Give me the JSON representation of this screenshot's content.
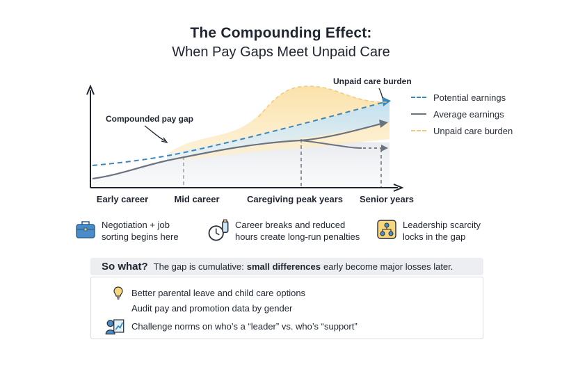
{
  "header": {
    "title": "The Compounding Effect:",
    "subtitle": "When Pay Gaps Meet Unpaid Care"
  },
  "chart_data": {
    "type": "line",
    "x_categories": [
      "Early career",
      "Mid career",
      "Caregiving peak years",
      "Senior years"
    ],
    "series": [
      {
        "name": "Potential earnings",
        "style": "dashed",
        "color": "#3a86b8"
      },
      {
        "name": "Average earnings",
        "style": "solid",
        "color": "#6b7280"
      },
      {
        "name": "Unpaid care burden",
        "style": "dashed",
        "color": "#f1c97a"
      }
    ],
    "annotations": [
      "Compounded pay gap",
      "Unpaid care burden"
    ],
    "grid": false,
    "legend_position": "right"
  },
  "legend": [
    {
      "label": "Potential earnings",
      "color": "#3a86b8"
    },
    {
      "label": "Average earnings",
      "color": "#6b7280"
    },
    {
      "label": "Unpaid care burden",
      "color": "#f1c97a"
    }
  ],
  "annotations": {
    "gap": "Compounded pay gap",
    "care": "Unpaid care burden"
  },
  "stages": [
    "Early career",
    "Mid career",
    "Caregiving peak years",
    "Senior years"
  ],
  "notes": [
    {
      "icon": "briefcase-icon",
      "line1": "Negotiation + job",
      "line2": "sorting begins here"
    },
    {
      "icon": "clock-bottle-icon",
      "line1": "Career breaks and reduced",
      "line2": "hours create long-run penalties"
    },
    {
      "icon": "org-chart-icon",
      "line1": "Leadership scarcity",
      "line2": "locks in the gap"
    }
  ],
  "sowhat": {
    "label": "So what?",
    "text_before": "The gap is cumulative:",
    "highlight": "small differences",
    "text_after": "early become major losses later."
  },
  "actions": [
    {
      "icon": "lightbulb-icon",
      "text": "Better parental leave and child care options"
    },
    {
      "icon": "checklist-icon",
      "text": "Audit pay and promotion data by gender"
    },
    {
      "icon": "leader-chart-icon",
      "text": "Challenge norms on who’s a “leader” vs. who’s “support”"
    }
  ],
  "colors": {
    "potential": "#3a86b8",
    "average": "#6b7280",
    "care": "#f1c97a",
    "gap_fill": "#cfe6f5",
    "care_fill": "#fbe3b0"
  }
}
